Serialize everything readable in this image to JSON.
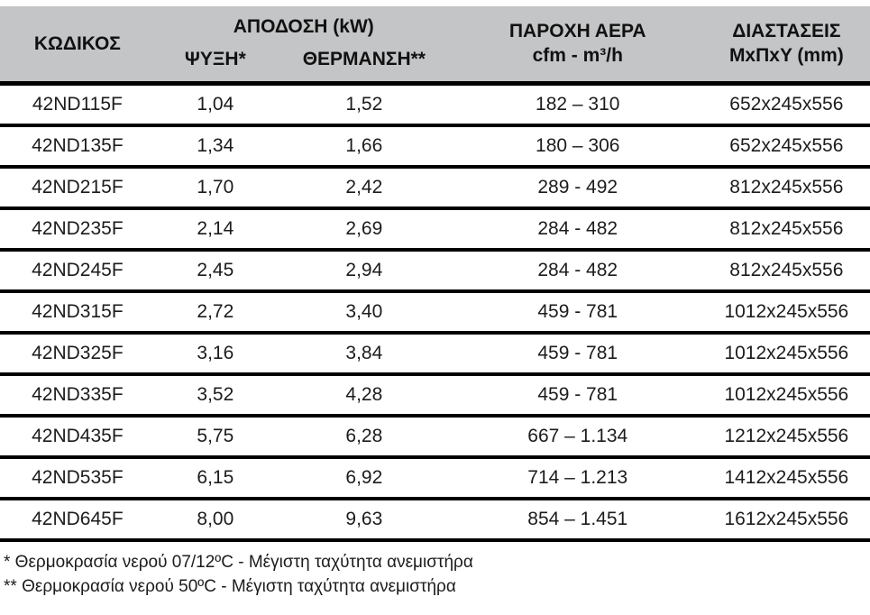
{
  "table": {
    "header": {
      "code": "ΚΩΔΙΚΟΣ",
      "capacity_group": "ΑΠΟΔΟΣΗ (kW)",
      "cooling": "ΨΥΞΗ*",
      "heating": "ΘΕΡΜΑΝΣΗ**",
      "airflow_line1": "ΠΑΡΟΧΗ ΑΕΡΑ",
      "airflow_line2": "cfm - m³/h",
      "dimensions_line1": "ΔΙΑΣΤΑΣΕΙΣ",
      "dimensions_line2": "ΜxΠxY (mm)"
    },
    "columns": [
      "code",
      "cooling",
      "heating",
      "airflow",
      "dimensions"
    ],
    "rows": [
      {
        "code": "42ND115F",
        "cooling": "1,04",
        "heating": "1,52",
        "airflow": "182 – 310",
        "dimensions": "652x245x556"
      },
      {
        "code": "42ND135F",
        "cooling": "1,34",
        "heating": "1,66",
        "airflow": "180 – 306",
        "dimensions": "652x245x556"
      },
      {
        "code": "42ND215F",
        "cooling": "1,70",
        "heating": "2,42",
        "airflow": "289 - 492",
        "dimensions": "812x245x556"
      },
      {
        "code": "42ND235F",
        "cooling": "2,14",
        "heating": "2,69",
        "airflow": "284 - 482",
        "dimensions": "812x245x556"
      },
      {
        "code": "42ND245F",
        "cooling": "2,45",
        "heating": "2,94",
        "airflow": "284 - 482",
        "dimensions": "812x245x556"
      },
      {
        "code": "42ND315F",
        "cooling": "2,72",
        "heating": "3,40",
        "airflow": "459 - 781",
        "dimensions": "1012x245x556"
      },
      {
        "code": "42ND325F",
        "cooling": "3,16",
        "heating": "3,84",
        "airflow": "459 - 781",
        "dimensions": "1012x245x556"
      },
      {
        "code": "42ND335F",
        "cooling": "3,52",
        "heating": "4,28",
        "airflow": "459 - 781",
        "dimensions": "1012x245x556"
      },
      {
        "code": "42ND435F",
        "cooling": "5,75",
        "heating": "6,28",
        "airflow": "667 – 1.134",
        "dimensions": "1212x245x556"
      },
      {
        "code": "42ND535F",
        "cooling": "6,15",
        "heating": "6,92",
        "airflow": "714 – 1.213",
        "dimensions": "1412x245x556"
      },
      {
        "code": "42ND645F",
        "cooling": "8,00",
        "heating": "9,63",
        "airflow": "854 – 1.451",
        "dimensions": "1612x245x556"
      }
    ],
    "colors": {
      "header_bg": "#c4c5c7",
      "rule": "#000000",
      "text": "#1c1c1c"
    }
  },
  "footnotes": {
    "note1": "* Θερμοκρασία νερού 07/12ºC - Μέγιστη ταχύτητα ανεμιστήρα",
    "note2": "** Θερμοκρασία νερού 50ºC - Μέγιστη ταχύτητα ανεμιστήρα"
  }
}
